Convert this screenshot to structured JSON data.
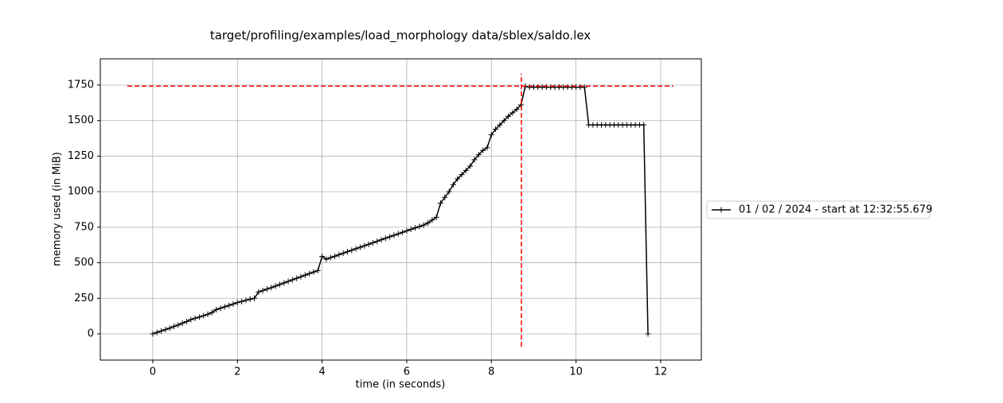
{
  "chart_data": {
    "type": "line",
    "title": "target/profiling/examples/load_morphology data/sblex/saldo.lex",
    "xlabel": "time (in seconds)",
    "ylabel": "memory used (in MiB)",
    "x": [
      0,
      0.1,
      0.2,
      0.3,
      0.4,
      0.5,
      0.6,
      0.7,
      0.8,
      0.9,
      1.0,
      1.1,
      1.2,
      1.3,
      1.4,
      1.5,
      1.6,
      1.7,
      1.8,
      1.9,
      2.0,
      2.1,
      2.2,
      2.3,
      2.4,
      2.5,
      2.6,
      2.7,
      2.8,
      2.9,
      3.0,
      3.1,
      3.2,
      3.3,
      3.4,
      3.5,
      3.6,
      3.7,
      3.8,
      3.9,
      4.0,
      4.1,
      4.2,
      4.3,
      4.4,
      4.5,
      4.6,
      4.7,
      4.8,
      4.9,
      5.0,
      5.1,
      5.2,
      5.3,
      5.4,
      5.5,
      5.6,
      5.7,
      5.8,
      5.9,
      6.0,
      6.1,
      6.2,
      6.3,
      6.4,
      6.5,
      6.6,
      6.7,
      6.8,
      6.9,
      7.0,
      7.1,
      7.2,
      7.3,
      7.4,
      7.5,
      7.6,
      7.7,
      7.8,
      7.9,
      8.0,
      8.1,
      8.2,
      8.3,
      8.4,
      8.5,
      8.6,
      8.7,
      8.8,
      8.9,
      9.0,
      9.1,
      9.2,
      9.3,
      9.4,
      9.5,
      9.6,
      9.7,
      9.8,
      9.9,
      10.0,
      10.1,
      10.2,
      10.3,
      10.4,
      10.5,
      10.6,
      10.7,
      10.8,
      10.9,
      11.0,
      11.1,
      11.2,
      11.3,
      11.4,
      11.5,
      11.6,
      11.7
    ],
    "series": [
      {
        "name": "01 / 02 / 2024 - start at 12:32:55.679",
        "color": "#000000",
        "values": [
          0,
          10,
          20,
          30,
          40,
          52,
          62,
          75,
          87,
          100,
          110,
          118,
          128,
          138,
          150,
          170,
          180,
          190,
          200,
          210,
          220,
          228,
          236,
          244,
          250,
          295,
          305,
          315,
          325,
          336,
          347,
          358,
          369,
          380,
          391,
          402,
          413,
          424,
          435,
          445,
          545,
          525,
          536,
          546,
          557,
          567,
          578,
          588,
          599,
          609,
          620,
          630,
          641,
          651,
          662,
          672,
          683,
          693,
          704,
          714,
          725,
          735,
          745,
          755,
          765,
          780,
          800,
          820,
          920,
          960,
          1000,
          1050,
          1090,
          1120,
          1150,
          1180,
          1225,
          1260,
          1290,
          1310,
          1400,
          1440,
          1470,
          1500,
          1530,
          1555,
          1580,
          1610,
          1740,
          1735,
          1735,
          1735,
          1735,
          1735,
          1735,
          1735,
          1735,
          1735,
          1735,
          1735,
          1735,
          1735,
          1735,
          1470,
          1470,
          1470,
          1470,
          1470,
          1470,
          1470,
          1470,
          1470,
          1470,
          1470,
          1470,
          1470,
          1470,
          0
        ]
      }
    ],
    "peak_line": {
      "x": 8.71,
      "y": 1742,
      "color": "#ff0000",
      "xspan": [
        -0.6,
        12.3
      ],
      "yspan": [
        -90,
        1830
      ]
    },
    "xlim": [
      -1.24,
      12.96
    ],
    "ylim": [
      -184.5,
      1934.5
    ],
    "xticks": [
      0,
      2,
      4,
      6,
      8,
      10,
      12
    ],
    "yticks": [
      0,
      250,
      500,
      750,
      1000,
      1250,
      1500,
      1750
    ],
    "grid": true,
    "legend": "right"
  }
}
